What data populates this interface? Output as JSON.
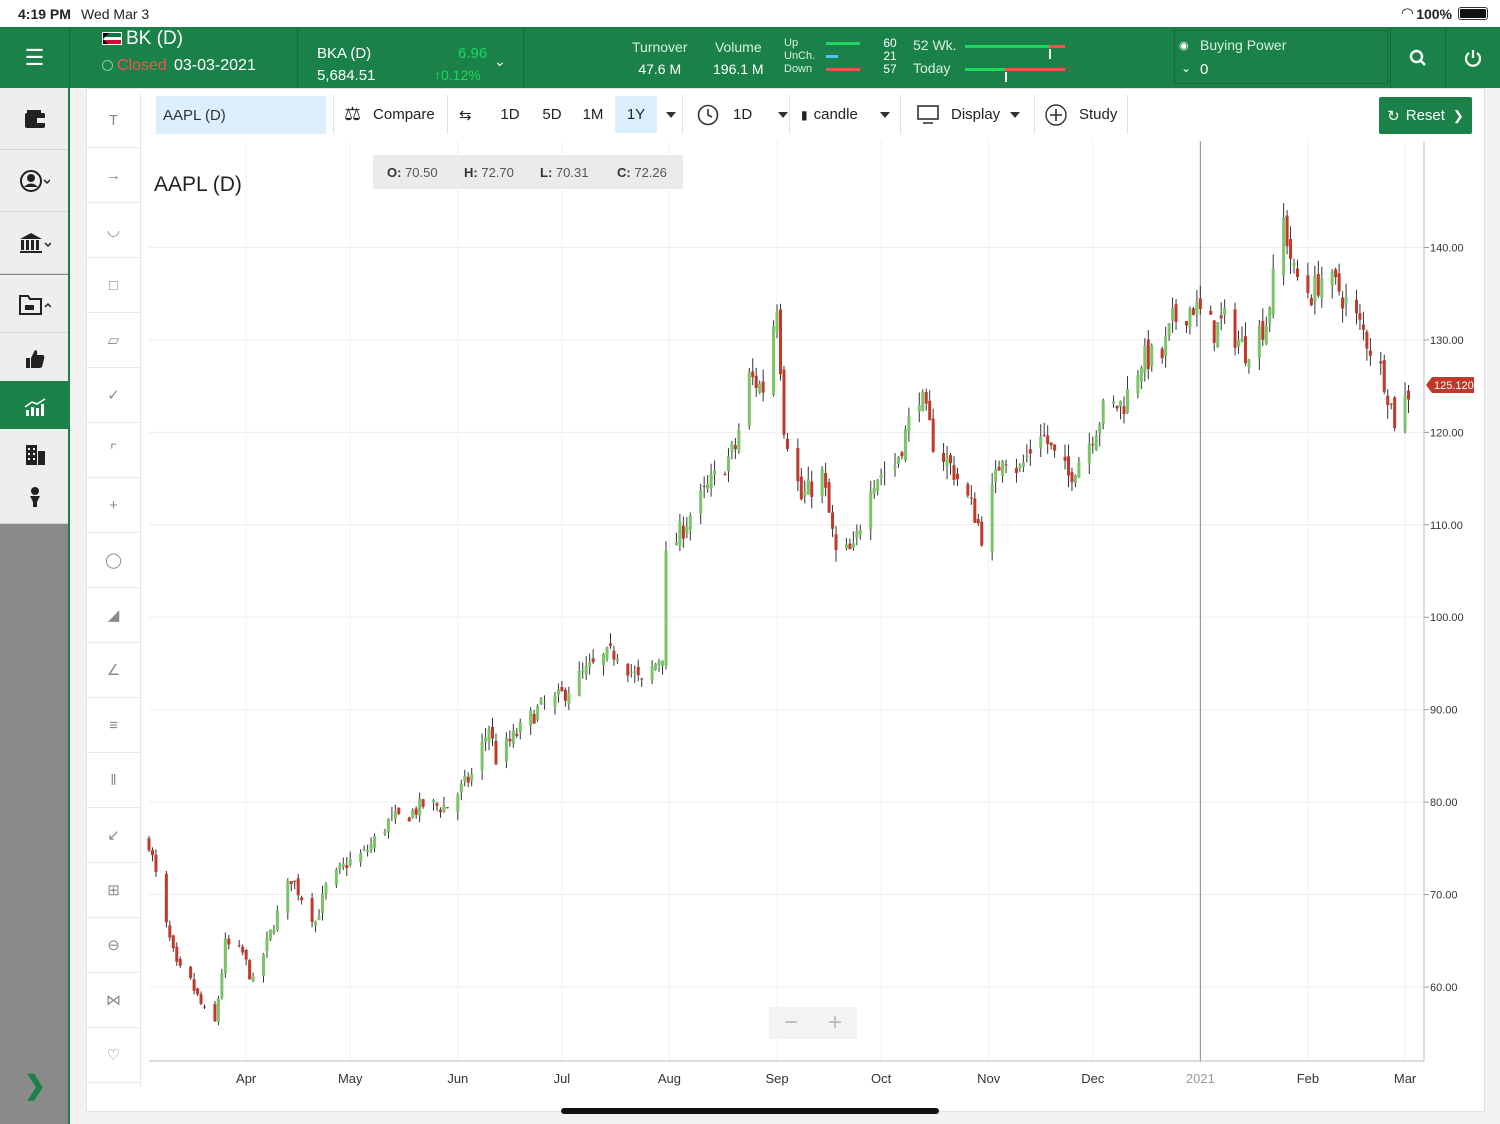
{
  "status_bar": {
    "time": "4:19 PM",
    "date": "Wed Mar 3",
    "battery": "100%"
  },
  "header": {
    "symbol": "BK (D)",
    "market_status": "Closed",
    "market_date": "03-03-2021",
    "index_name": "BKA (D)",
    "index_value": "5,684.51",
    "index_change": "6.96",
    "index_change_pct": "0.12%",
    "turnover_label": "Turnover",
    "turnover_value": "47.6 M",
    "volume_label": "Volume",
    "volume_value": "196.1 M",
    "up_label": "Up",
    "up_value": "60",
    "unch_label": "UnCh.",
    "unch_value": "21",
    "down_label": "Down",
    "down_value": "57",
    "week52_label": "52 Wk.",
    "today_label": "Today",
    "week52_position": 0.84,
    "today_position": 0.4,
    "buying_power_label": "Buying Power",
    "buying_power_value": "0"
  },
  "left_nav": {
    "items": [
      "wallet-icon",
      "user-icon",
      "bank-icon",
      "portfolio-icon",
      "thumbs-up-icon",
      "chart-icon",
      "buildings-icon",
      "hand-coin-icon"
    ],
    "active_index": 5
  },
  "toolbar": {
    "symbol_value": "AAPL (D)",
    "compare_label": "Compare",
    "ranges": [
      "1D",
      "5D",
      "1M",
      "1Y"
    ],
    "active_range": "1Y",
    "interval_label": "1D",
    "chart_type_label": "candle",
    "display_label": "Display",
    "study_label": "Study",
    "reset_label": "Reset"
  },
  "chart_data": {
    "type": "candlestick",
    "title": "AAPL (D)",
    "ohlc_readout": {
      "o_label": "O:",
      "o": "70.50",
      "h_label": "H:",
      "h": "72.70",
      "l_label": "L:",
      "l": "70.31",
      "c_label": "C:",
      "c": "72.26"
    },
    "last_price_label": "125.120",
    "last_price": 125.12,
    "ylim": [
      52,
      150
    ],
    "y_ticks": [
      60,
      70,
      80,
      90,
      100,
      110,
      120,
      130,
      140
    ],
    "y_tick_labels": [
      "60.00",
      "70.00",
      "80.00",
      "90.00",
      "100.00",
      "110.00",
      "120.00",
      "130.00",
      "140.00"
    ],
    "x_labels": [
      "Apr",
      "May",
      "Jun",
      "Jul",
      "Aug",
      "Sep",
      "Oct",
      "Nov",
      "Dec",
      "2021",
      "Feb",
      "Mar"
    ],
    "x_label_dates": [
      "2020-04-01",
      "2020-05-01",
      "2020-06-01",
      "2020-07-01",
      "2020-08-01",
      "2020-09-01",
      "2020-10-01",
      "2020-11-01",
      "2020-12-01",
      "2021-01-01",
      "2021-02-01",
      "2021-03-01"
    ],
    "x_range": [
      "2020-03-04",
      "2021-03-03"
    ],
    "crosshair_date": "2021-01-01",
    "up_color": "#7cc36a",
    "down_color": "#c0392b",
    "close_path": [
      [
        "2020-03-04",
        75.7
      ],
      [
        "2020-03-09",
        66.5
      ],
      [
        "2020-03-12",
        62.1
      ],
      [
        "2020-03-16",
        60.5
      ],
      [
        "2020-03-20",
        57.3
      ],
      [
        "2020-03-23",
        56.1
      ],
      [
        "2020-03-26",
        64.6
      ],
      [
        "2020-03-31",
        63.6
      ],
      [
        "2020-04-03",
        60.4
      ],
      [
        "2020-04-09",
        66.9
      ],
      [
        "2020-04-14",
        71.8
      ],
      [
        "2020-04-21",
        67.1
      ],
      [
        "2020-04-24",
        70.7
      ],
      [
        "2020-04-30",
        73.4
      ],
      [
        "2020-05-05",
        74.4
      ],
      [
        "2020-05-12",
        77.9
      ],
      [
        "2020-05-18",
        78.7
      ],
      [
        "2020-05-22",
        79.7
      ],
      [
        "2020-05-29",
        79.5
      ],
      [
        "2020-06-05",
        82.9
      ],
      [
        "2020-06-10",
        88.2
      ],
      [
        "2020-06-12",
        84.7
      ],
      [
        "2020-06-18",
        87.4
      ],
      [
        "2020-06-24",
        90.0
      ],
      [
        "2020-06-30",
        91.2
      ],
      [
        "2020-07-06",
        93.5
      ],
      [
        "2020-07-13",
        95.5
      ],
      [
        "2020-07-17",
        96.3
      ],
      [
        "2020-07-24",
        92.6
      ],
      [
        "2020-07-30",
        96.2
      ],
      [
        "2020-07-31",
        106.3
      ],
      [
        "2020-08-07",
        111.1
      ],
      [
        "2020-08-14",
        115.0
      ],
      [
        "2020-08-20",
        118.3
      ],
      [
        "2020-08-24",
        125.9
      ],
      [
        "2020-08-28",
        124.8
      ],
      [
        "2020-09-01",
        134.2
      ],
      [
        "2020-09-03",
        120.9
      ],
      [
        "2020-09-08",
        112.8
      ],
      [
        "2020-09-14",
        115.4
      ],
      [
        "2020-09-18",
        106.8
      ],
      [
        "2020-09-23",
        107.1
      ],
      [
        "2020-09-28",
        114.9
      ],
      [
        "2020-10-05",
        116.5
      ],
      [
        "2020-10-12",
        124.4
      ],
      [
        "2020-10-16",
        119.0
      ],
      [
        "2020-10-22",
        115.8
      ],
      [
        "2020-10-28",
        111.2
      ],
      [
        "2020-10-30",
        108.9
      ],
      [
        "2020-11-05",
        118.0
      ],
      [
        "2020-11-10",
        115.9
      ],
      [
        "2020-11-16",
        120.3
      ],
      [
        "2020-11-20",
        117.3
      ],
      [
        "2020-11-24",
        115.2
      ],
      [
        "2020-11-30",
        119.1
      ],
      [
        "2020-12-04",
        122.3
      ],
      [
        "2020-12-10",
        123.2
      ],
      [
        "2020-12-15",
        127.9
      ],
      [
        "2020-12-21",
        128.2
      ],
      [
        "2020-12-24",
        131.97
      ],
      [
        "2020-12-30",
        133.7
      ],
      [
        "2021-01-05",
        131.0
      ],
      [
        "2021-01-08",
        132.1
      ],
      [
        "2021-01-14",
        128.9
      ],
      [
        "2021-01-20",
        132.0
      ],
      [
        "2021-01-25",
        142.9
      ],
      [
        "2021-01-28",
        137.1
      ],
      [
        "2021-02-02",
        134.99
      ],
      [
        "2021-02-05",
        136.8
      ],
      [
        "2021-02-10",
        135.4
      ],
      [
        "2021-02-17",
        130.8
      ],
      [
        "2021-02-23",
        125.9
      ],
      [
        "2021-02-26",
        121.3
      ],
      [
        "2021-03-03",
        125.12
      ]
    ]
  }
}
